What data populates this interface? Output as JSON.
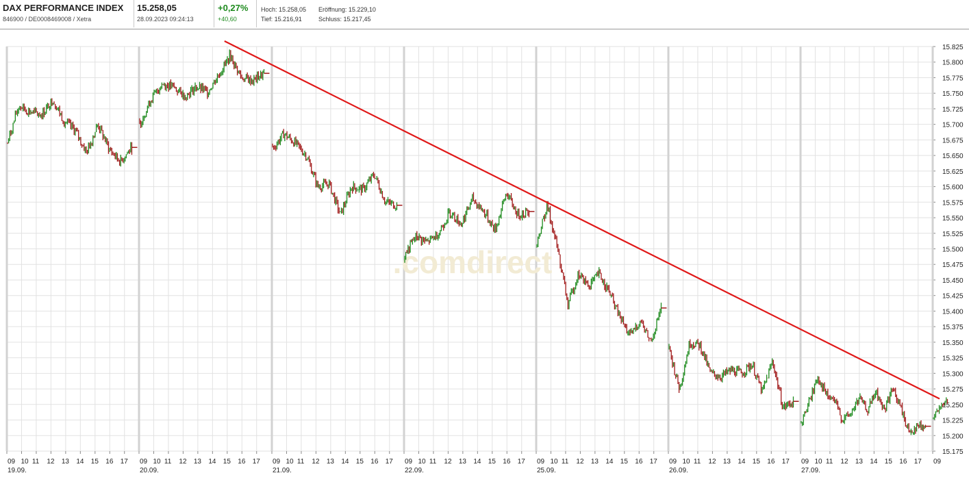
{
  "header": {
    "name": "DAX PERFORMANCE INDEX",
    "ids": "846900 / DE0008469008 / Xetra",
    "price": "15.258,05",
    "datetime": "28.09.2023 09:24:13",
    "change_pct": "+0,27%",
    "change_abs": "+40,60",
    "high": "Hoch: 15.258,05",
    "open": "Eröffnung: 15.229,10",
    "low": "Tief: 15.216,91",
    "close": "Schluss: 15.217,45"
  },
  "watermark": ".comdirect",
  "colors": {
    "up": "#1d8a1d",
    "down": "#a01818",
    "trendline": "#e01818",
    "grid": "#e2e2e2",
    "day_separator": "#d2d2d2",
    "watermark": "#f2ebd4"
  },
  "chart_data": {
    "type": "line",
    "series_style": "intraday OHLC bars, green = up, red = down",
    "ylim": [
      15175,
      15825
    ],
    "y_ticks": [
      "15.825",
      "15.800",
      "15.775",
      "15.750",
      "15.725",
      "15.700",
      "15.675",
      "15.650",
      "15.625",
      "15.600",
      "15.575",
      "15.550",
      "15.525",
      "15.500",
      "15.475",
      "15.450",
      "15.425",
      "15.400",
      "15.375",
      "15.350",
      "15.325",
      "15.300",
      "15.275",
      "15.250",
      "15.225",
      "15.200",
      "15.175"
    ],
    "hour_labels": [
      "10",
      "11",
      "12",
      "13",
      "14",
      "15",
      "16",
      "17"
    ],
    "days": [
      {
        "date": "19.09.",
        "points": [
          15670,
          15730,
          15720,
          15715,
          15740,
          15705,
          15690,
          15655,
          15700,
          15660,
          15640,
          15663
        ]
      },
      {
        "date": "20.09.",
        "points": [
          15700,
          15740,
          15765,
          15760,
          15745,
          15760,
          15752,
          15780,
          15810,
          15775,
          15770,
          15782
        ]
      },
      {
        "date": "21.09.",
        "points": [
          15660,
          15685,
          15670,
          15650,
          15600,
          15605,
          15555,
          15600,
          15595,
          15620,
          15575,
          15570
        ]
      },
      {
        "date": "22.09.",
        "points": [
          15490,
          15520,
          15510,
          15525,
          15560,
          15540,
          15580,
          15560,
          15530,
          15590,
          15555,
          15560
        ]
      },
      {
        "date": "25.09.",
        "points": [
          15510,
          15570,
          15500,
          15410,
          15460,
          15440,
          15460,
          15430,
          15390,
          15360,
          15385,
          15350,
          15405
        ]
      },
      {
        "date": "26.09.",
        "points": [
          15340,
          15275,
          15350,
          15345,
          15300,
          15295,
          15305,
          15300,
          15315,
          15270,
          15320,
          15245,
          15255
        ]
      },
      {
        "date": "27.09.",
        "points": [
          15220,
          15255,
          15295,
          15265,
          15255,
          15225,
          15235,
          15260,
          15240,
          15270,
          15240,
          15275,
          15245,
          15205,
          15215,
          15215
        ]
      },
      {
        "date": "",
        "points": [
          15230,
          15258
        ]
      }
    ],
    "trendline": {
      "start": {
        "day": "20.09.",
        "hour": "15",
        "value": 15825
      },
      "end": {
        "day": "28.09.",
        "hour": "09",
        "value": 15258
      }
    }
  }
}
